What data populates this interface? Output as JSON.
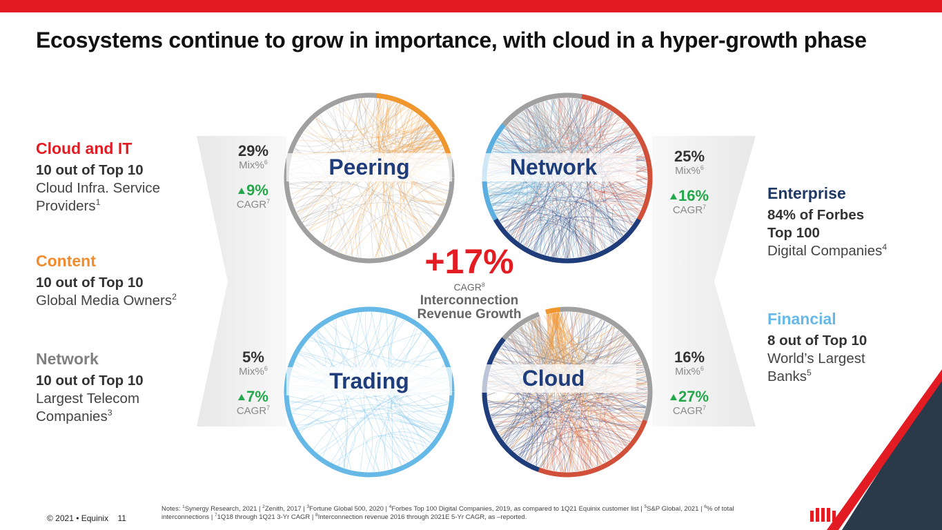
{
  "title": "Ecosystems continue to grow in importance, with cloud in a hyper-growth phase",
  "left": [
    {
      "heading": "Cloud and IT",
      "bold": "10 out of Top 10",
      "text": "Cloud Infra. Service Providers",
      "sup": "1"
    },
    {
      "heading": "Content",
      "bold": "10 out of Top 10",
      "text": "Global Media Owners",
      "sup": "2"
    },
    {
      "heading": "Network",
      "bold": "10 out of Top 10",
      "text": "Largest Telecom Companies",
      "sup": "3"
    }
  ],
  "right": [
    {
      "heading": "Enterprise",
      "bold": "84% of Forbes Top 100",
      "text": "Digital Companies",
      "sup": "4"
    },
    {
      "heading": "Financial",
      "bold": "8 out of Top 10",
      "text": "World’s Largest Banks",
      "sup": "5"
    }
  ],
  "circles": [
    {
      "label": "Peering",
      "mix": "29%",
      "mix_label": "Mix%",
      "mix_sup": "6",
      "cagr": "9%",
      "cagr_label": "CAGR",
      "cagr_sup": "7"
    },
    {
      "label": "Network",
      "mix": "25%",
      "mix_label": "Mix%",
      "mix_sup": "6",
      "cagr": "16%",
      "cagr_label": "CAGR",
      "cagr_sup": "7"
    },
    {
      "label": "Trading",
      "mix": "5%",
      "mix_label": "Mix%",
      "mix_sup": "6",
      "cagr": "7%",
      "cagr_label": "CAGR",
      "cagr_sup": "7"
    },
    {
      "label": "Cloud",
      "mix": "16%",
      "mix_label": "Mix%",
      "mix_sup": "6",
      "cagr": "27%",
      "cagr_label": "CAGR",
      "cagr_sup": "7"
    }
  ],
  "center": {
    "value": "+17%",
    "label": "CAGR",
    "sup": "8",
    "caption": "Interconnection Revenue Growth"
  },
  "notes": {
    "label": "Notes:",
    "items": [
      {
        "sup": "1",
        "text": "Synergy Research, 2021 |"
      },
      {
        "sup": "2",
        "text": "Zenith, 2017 |"
      },
      {
        "sup": "3",
        "text": "Fortune Global 500, 2020 |"
      },
      {
        "sup": "4",
        "text": "Forbes Top 100 Digital Companies, 2019, as compared to 1Q21 Equinix customer list  |"
      },
      {
        "sup": "5",
        "text": "S&P Global, 2021 |"
      },
      {
        "sup": "6",
        "text": "% of total interconnections |"
      },
      {
        "sup": "7",
        "text": "1Q18 through 1Q21 3-Yr CAGR  |"
      },
      {
        "sup": "8",
        "text": "Interconnection revenue 2016 through 2021E 5-Yr CAGR, as –reported."
      }
    ]
  },
  "footer": {
    "copyright": "© 2021 • Equinix",
    "page": "11"
  }
}
